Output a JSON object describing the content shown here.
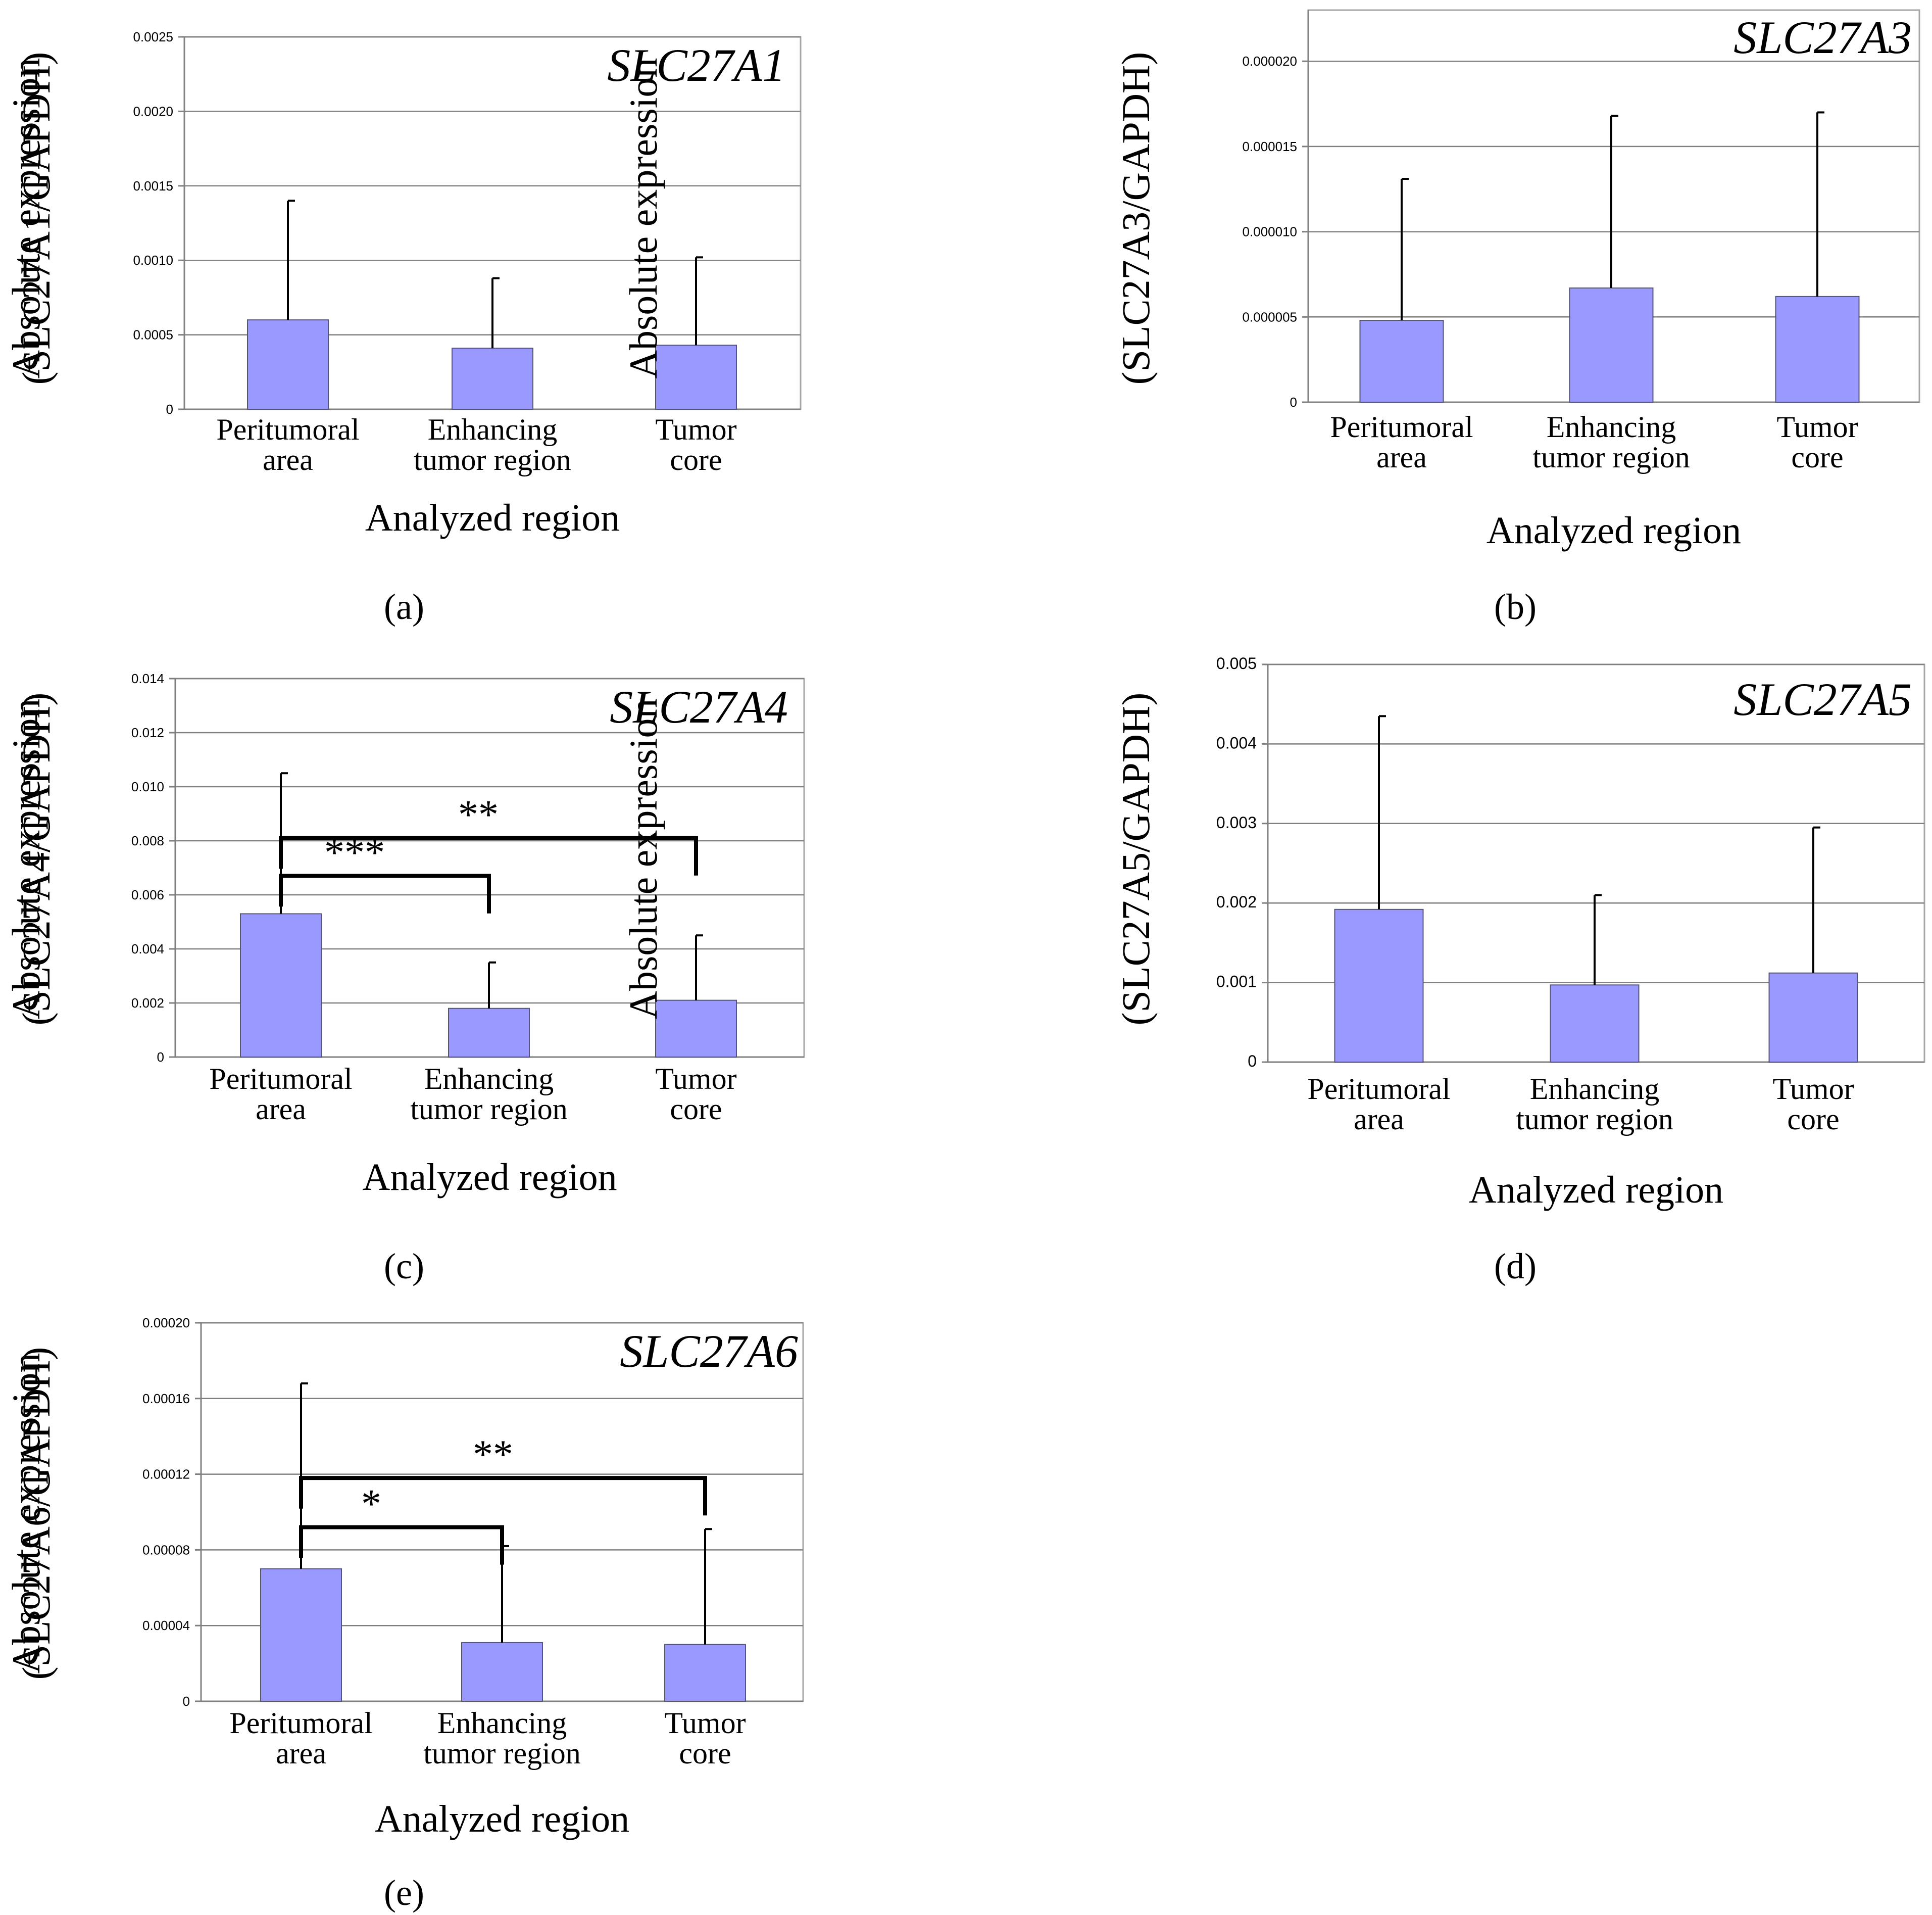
{
  "chart_data": [
    {
      "type": "bar",
      "panel": "a",
      "gene": "SLC27A1",
      "title": "SLC27A1",
      "ylabel_line1": "Absolute expression",
      "ylabel_line2": "(SLC27A1/GAPDH)",
      "xlabel": "Analyzed region",
      "categories": [
        [
          "Peritumoral",
          "area"
        ],
        [
          "Enhancing",
          "tumor region"
        ],
        [
          "Tumor",
          "core"
        ]
      ],
      "values": [
        0.0006,
        0.00041,
        0.00043
      ],
      "errors": [
        0.0014,
        0.00088,
        0.00102
      ],
      "ylim": [
        0,
        0.0025
      ],
      "yticks": [
        "0",
        "0.0005",
        "0.0010",
        "0.0015",
        "0.0020",
        "0.0025"
      ],
      "significance": []
    },
    {
      "type": "bar",
      "panel": "b",
      "gene": "SLC27A3",
      "title": "SLC27A3",
      "ylabel_line1": "Absolute expression",
      "ylabel_line2": "(SLC27A3/GAPDH)",
      "xlabel": "Analyzed region",
      "categories": [
        [
          "Peritumoral",
          "area"
        ],
        [
          "Enhancing",
          "tumor region"
        ],
        [
          "Tumor",
          "core"
        ]
      ],
      "values": [
        4.8e-06,
        6.7e-06,
        6.2e-06
      ],
      "errors": [
        1.31e-05,
        1.68e-05,
        1.7e-05
      ],
      "ylim": [
        0,
        2.3e-05
      ],
      "yticks": [
        "0",
        "0.000005",
        "0.000010",
        "0.000015",
        "0.000020"
      ],
      "significance": []
    },
    {
      "type": "bar",
      "panel": "c",
      "gene": "SLC27A4",
      "title": "SLC27A4",
      "ylabel_line1": "Absolute expression",
      "ylabel_line2": "(SLC27A4/GAPDH)",
      "xlabel": "Analyzed region",
      "categories": [
        [
          "Peritumoral",
          "area"
        ],
        [
          "Enhancing",
          "tumor region"
        ],
        [
          "Tumor",
          "core"
        ]
      ],
      "values": [
        0.0053,
        0.0018,
        0.0021
      ],
      "errors": [
        0.0105,
        0.0035,
        0.0045
      ],
      "ylim": [
        0,
        0.014
      ],
      "yticks": [
        "0",
        "0.002",
        "0.004",
        "0.006",
        "0.008",
        "0.010",
        "0.012",
        "0.014"
      ],
      "significance": [
        {
          "from": 0,
          "to": 1,
          "label": "***",
          "level": 0.0067
        },
        {
          "from": 0,
          "to": 2,
          "label": "**",
          "level": 0.0081
        }
      ]
    },
    {
      "type": "bar",
      "panel": "d",
      "gene": "SLC27A5",
      "title": "SLC27A5",
      "ylabel_line1": "Absolute expression",
      "ylabel_line2": "(SLC27A5/GAPDH)",
      "xlabel": "Analyzed region",
      "categories": [
        [
          "Peritumoral",
          "area"
        ],
        [
          "Enhancing",
          "tumor region"
        ],
        [
          "Tumor",
          "core"
        ]
      ],
      "values": [
        0.00192,
        0.00097,
        0.00112
      ],
      "errors": [
        0.00435,
        0.0021,
        0.00295
      ],
      "ylim": [
        0,
        0.005
      ],
      "yticks": [
        "0",
        "0.001",
        "0.002",
        "0.003",
        "0.004",
        "0.005"
      ],
      "significance": []
    },
    {
      "type": "bar",
      "panel": "e",
      "gene": "SLC27A6",
      "title": "SLC27A6",
      "ylabel_line1": "Absolute expression",
      "ylabel_line2": "(SLC27A6/GAPDH)",
      "xlabel": "Analyzed region",
      "categories": [
        [
          "Peritumoral",
          "area"
        ],
        [
          "Enhancing",
          "tumor region"
        ],
        [
          "Tumor",
          "core"
        ]
      ],
      "values": [
        7e-05,
        3.1e-05,
        3e-05
      ],
      "errors": [
        0.000168,
        8.2e-05,
        9.1e-05
      ],
      "ylim": [
        0,
        0.0002
      ],
      "yticks": [
        "0",
        "0.00004",
        "0.00008",
        "0.00012",
        "0.00016",
        "0.00020"
      ],
      "significance": [
        {
          "from": 0,
          "to": 1,
          "label": "*",
          "level": 9.2e-05
        },
        {
          "from": 0,
          "to": 2,
          "label": "**",
          "level": 0.000118
        }
      ]
    }
  ],
  "panel_labels": [
    "(a)",
    "(b)",
    "(c)",
    "(d)",
    "(e)"
  ]
}
